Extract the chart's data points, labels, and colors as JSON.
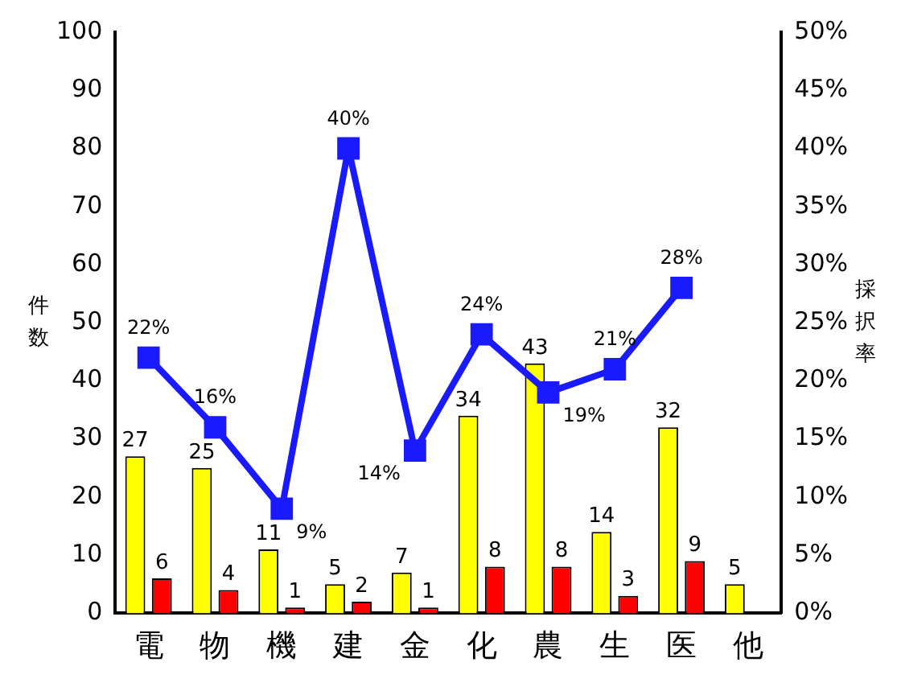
{
  "chart_data": {
    "type": "bar",
    "categories": [
      "電",
      "物",
      "機",
      "建",
      "金",
      "化",
      "農",
      "生",
      "医",
      "他"
    ],
    "series": [
      {
        "color": "#ffff00",
        "values": [
          27,
          25,
          11,
          5,
          7,
          34,
          43,
          14,
          32,
          5
        ],
        "value_labels": [
          "27",
          "25",
          "11",
          "5",
          "7",
          "34",
          "43",
          "14",
          "32",
          "5"
        ]
      },
      {
        "color": "#ff0000",
        "values": [
          6,
          4,
          1,
          2,
          1,
          8,
          8,
          3,
          9,
          null
        ],
        "value_labels": [
          "6",
          "4",
          "1",
          "2",
          "1",
          "8",
          "8",
          "3",
          "9",
          null
        ]
      },
      {
        "type": "line",
        "axis": "y2",
        "color": "#1a1aff",
        "values": [
          22,
          16,
          9,
          40,
          14,
          24,
          19,
          21,
          28,
          null
        ],
        "value_labels": [
          "22%",
          "16%",
          "9%",
          "40%",
          "14%",
          "24%",
          "19%",
          "21%",
          "28%",
          null
        ]
      }
    ],
    "ylabel": "件数",
    "y2label": "採択率",
    "ylim": [
      0,
      100
    ],
    "yticks": [
      0,
      10,
      20,
      30,
      40,
      50,
      60,
      70,
      80,
      90,
      100
    ],
    "y2lim": [
      0,
      50
    ],
    "y2ticks": [
      {
        "value": 0,
        "label": "0%"
      },
      {
        "value": 5,
        "label": "5%"
      },
      {
        "value": 10,
        "label": "10%"
      },
      {
        "value": 15,
        "label": "15%"
      },
      {
        "value": 20,
        "label": "20%"
      },
      {
        "value": 25,
        "label": "25%"
      },
      {
        "value": 30,
        "label": "30%"
      },
      {
        "value": 35,
        "label": "35%"
      },
      {
        "value": 40,
        "label": "40%"
      },
      {
        "value": 45,
        "label": "45%"
      },
      {
        "value": 50,
        "label": "50%"
      }
    ],
    "grid": false,
    "legend": false,
    "marker": "square",
    "line_style": "solid"
  }
}
